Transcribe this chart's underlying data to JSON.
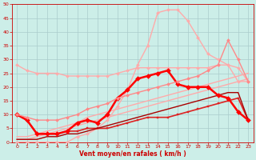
{
  "background_color": "#cceee8",
  "grid_color": "#aacccc",
  "xlabel": "Vent moyen/en rafales ( km/h )",
  "xlabel_color": "#cc0000",
  "tick_color": "#cc0000",
  "xlim": [
    -0.5,
    23.5
  ],
  "ylim": [
    0,
    50
  ],
  "xticks": [
    0,
    1,
    2,
    3,
    4,
    5,
    6,
    7,
    8,
    9,
    10,
    11,
    12,
    13,
    14,
    15,
    16,
    17,
    18,
    19,
    20,
    21,
    22,
    23
  ],
  "yticks": [
    0,
    5,
    10,
    15,
    20,
    25,
    30,
    35,
    40,
    45,
    50
  ],
  "lines": [
    {
      "x": [
        0,
        1,
        2,
        3,
        4,
        5,
        6,
        7,
        8,
        9,
        10,
        11,
        12,
        13,
        14,
        15,
        16,
        17,
        18,
        19,
        20,
        21,
        22,
        23
      ],
      "y": [
        28,
        26,
        25,
        25,
        25,
        24,
        24,
        24,
        24,
        24,
        25,
        26,
        27,
        27,
        27,
        27,
        27,
        27,
        27,
        27,
        28,
        28,
        27,
        22
      ],
      "color": "#ffaaaa",
      "lw": 1.0,
      "marker": "D",
      "ms": 2.0
    },
    {
      "x": [
        0,
        1,
        2,
        3,
        4,
        5,
        6,
        7,
        8,
        9,
        10,
        11,
        12,
        13,
        14,
        15,
        16,
        17,
        18,
        19,
        20,
        21,
        22,
        23
      ],
      "y": [
        0,
        0,
        0,
        0,
        0,
        0,
        2,
        3,
        5,
        8,
        13,
        19,
        28,
        35,
        47,
        48,
        48,
        44,
        38,
        32,
        30,
        28,
        22,
        22
      ],
      "color": "#ffaaaa",
      "lw": 1.0,
      "marker": "D",
      "ms": 2.0
    },
    {
      "x": [
        0,
        1,
        2,
        3,
        4,
        5,
        6,
        7,
        8,
        9,
        10,
        11,
        12,
        13,
        14,
        15,
        16,
        17,
        18,
        19,
        20,
        21,
        22,
        23
      ],
      "y": [
        1,
        1,
        2,
        3,
        4,
        5,
        6,
        7,
        8,
        9,
        10,
        11,
        12,
        13,
        14,
        15,
        16,
        17,
        18,
        19,
        20,
        21,
        22,
        23
      ],
      "color": "#ffaaaa",
      "lw": 1.0,
      "marker": null,
      "ms": 0
    },
    {
      "x": [
        0,
        1,
        2,
        3,
        4,
        5,
        6,
        7,
        8,
        9,
        10,
        11,
        12,
        13,
        14,
        15,
        16,
        17,
        18,
        19,
        20,
        21,
        22,
        23
      ],
      "y": [
        2,
        2,
        3,
        4,
        5,
        6,
        7,
        9,
        10,
        11,
        12,
        13,
        14,
        15,
        16,
        17,
        18,
        19,
        20,
        21,
        22,
        23,
        24,
        25
      ],
      "color": "#ffaaaa",
      "lw": 1.0,
      "marker": null,
      "ms": 0
    },
    {
      "x": [
        0,
        1,
        2,
        3,
        4,
        5,
        6,
        7,
        8,
        9,
        10,
        11,
        12,
        13,
        14,
        15,
        16,
        17,
        18,
        19,
        20,
        21,
        22,
        23
      ],
      "y": [
        10,
        8,
        3,
        3,
        3,
        4,
        4,
        5,
        5,
        5,
        6,
        7,
        8,
        9,
        9,
        9,
        10,
        11,
        12,
        13,
        14,
        15,
        16,
        8
      ],
      "color": "#dd2222",
      "lw": 1.2,
      "marker": "s",
      "ms": 2.0
    },
    {
      "x": [
        0,
        1,
        2,
        3,
        4,
        5,
        6,
        7,
        8,
        9,
        10,
        11,
        12,
        13,
        14,
        15,
        16,
        17,
        18,
        19,
        20,
        21,
        22,
        23
      ],
      "y": [
        1,
        1,
        1,
        2,
        2,
        3,
        3,
        4,
        5,
        6,
        7,
        8,
        9,
        10,
        11,
        12,
        13,
        14,
        15,
        16,
        17,
        18,
        18,
        8
      ],
      "color": "#aa0000",
      "lw": 1.0,
      "marker": null,
      "ms": 0
    },
    {
      "x": [
        0,
        1,
        2,
        3,
        4,
        5,
        6,
        7,
        8,
        9,
        10,
        11,
        12,
        13,
        14,
        15,
        16,
        17,
        18,
        19,
        20,
        21,
        22,
        23
      ],
      "y": [
        10,
        8,
        3,
        3,
        3,
        4,
        7,
        8,
        7,
        10,
        16,
        19,
        23,
        24,
        25,
        26,
        21,
        20,
        20,
        20,
        17,
        16,
        11,
        8
      ],
      "color": "#ff0000",
      "lw": 1.8,
      "marker": "D",
      "ms": 3.0
    },
    {
      "x": [
        0,
        1,
        2,
        3,
        4,
        5,
        6,
        7,
        8,
        9,
        10,
        11,
        12,
        13,
        14,
        15,
        16,
        17,
        18,
        19,
        20,
        21,
        22,
        23
      ],
      "y": [
        10,
        9,
        8,
        8,
        8,
        9,
        10,
        12,
        13,
        14,
        16,
        17,
        18,
        19,
        20,
        21,
        22,
        23,
        24,
        26,
        28,
        37,
        30,
        22
      ],
      "color": "#ff8888",
      "lw": 1.0,
      "marker": "D",
      "ms": 2.0
    }
  ]
}
